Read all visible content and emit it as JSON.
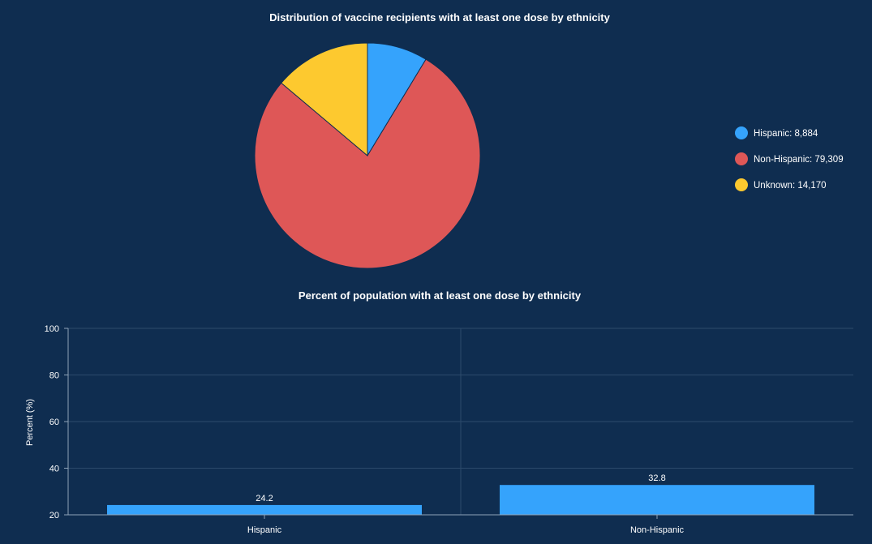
{
  "chart_data": [
    {
      "type": "pie",
      "title": "Distribution of vaccine recipients with at least one dose by ethnicity",
      "slices": [
        {
          "label": "Hispanic",
          "value": 8884,
          "display_value": "8,884",
          "color": "#35a3fc"
        },
        {
          "label": "Non-Hispanic",
          "value": 79309,
          "display_value": "79,309",
          "color": "#de5757"
        },
        {
          "label": "Unknown",
          "value": 14170,
          "display_value": "14,170",
          "color": "#fdc92f"
        }
      ],
      "legend_position": "right"
    },
    {
      "type": "bar",
      "title": "Percent of population with at least one dose by ethnicity",
      "categories": [
        "Hispanic",
        "Non-Hispanic"
      ],
      "values": [
        24.2,
        32.8
      ],
      "value_labels": [
        "24.2",
        "32.8"
      ],
      "ylabel": "Percent (%)",
      "xlabel": "",
      "ylim": [
        20,
        100
      ],
      "yticks": [
        "20",
        "40",
        "60",
        "80",
        "100"
      ],
      "bar_color": "#35a3fc",
      "grid": true
    }
  ]
}
